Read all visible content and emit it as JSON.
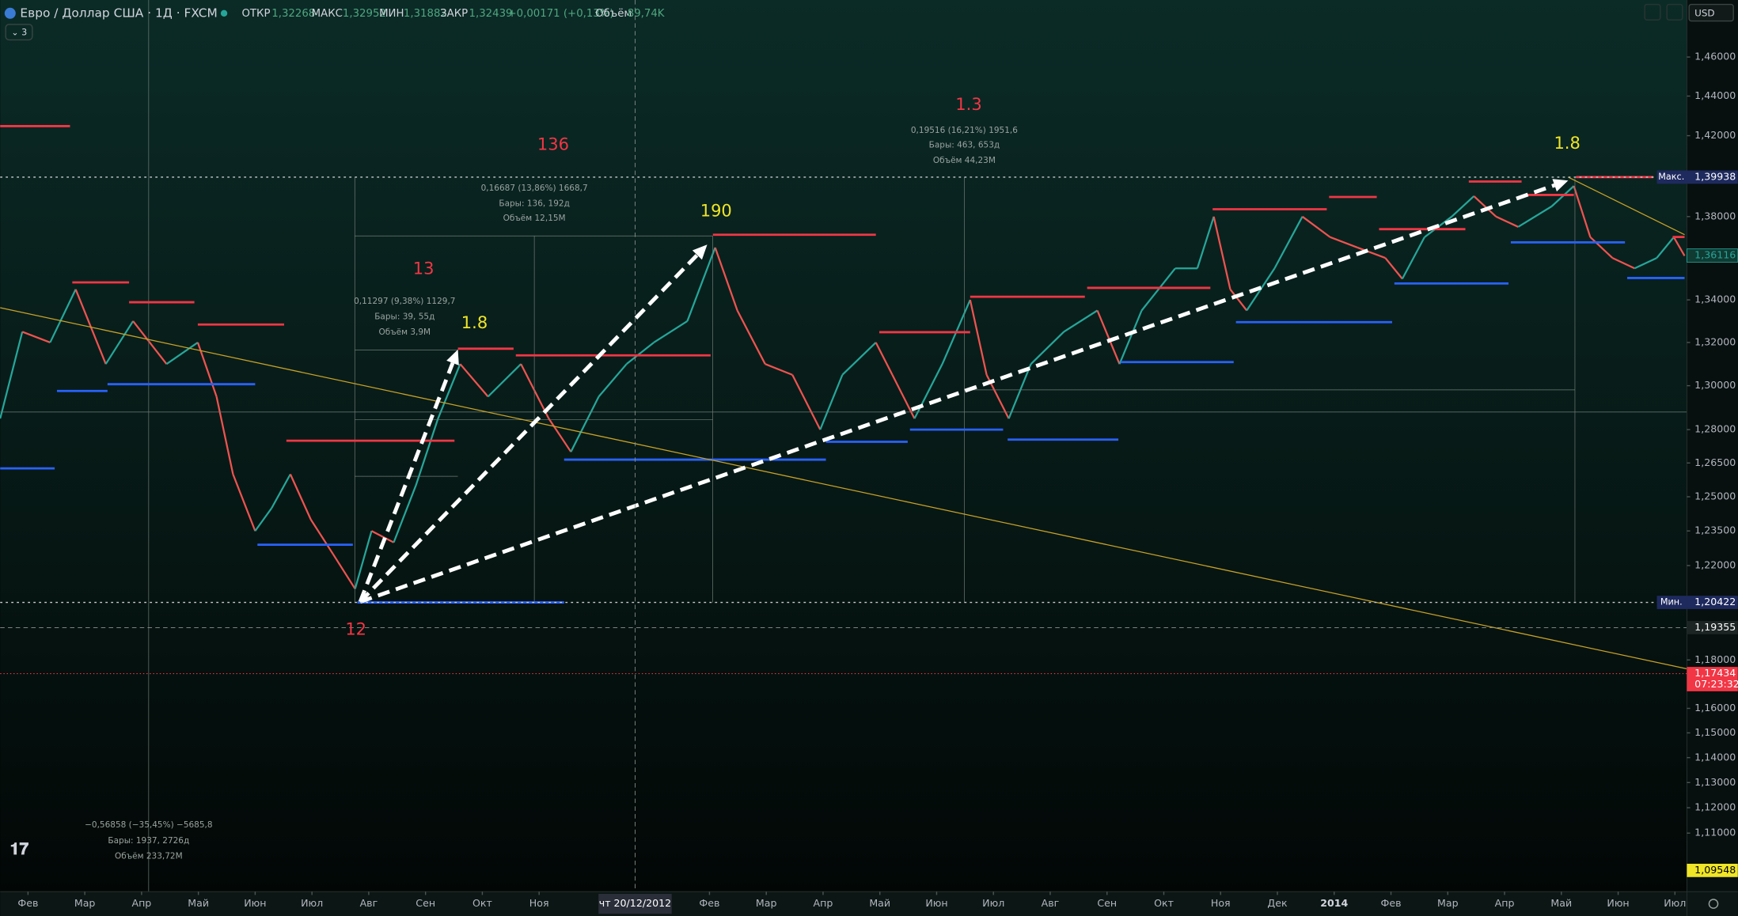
{
  "header": {
    "symbol": "Евро / Доллар США · 1Д · FXCM",
    "open_label": "ОТКР",
    "open": "1,32268",
    "high_label": "МАКС",
    "high": "1,32952",
    "low_label": "МИН",
    "low": "1,31882",
    "close_label": "ЗАКР",
    "close": "1,32439",
    "change": "+0,00171 (+0,13%)",
    "volume_label": "Объём",
    "volume": "89,74K",
    "indicators": "3",
    "currency": "USD"
  },
  "annotations": [
    {
      "text": "136",
      "color": "#f23645"
    },
    {
      "text": "1.3",
      "color": "#f23645"
    },
    {
      "text": "190",
      "color": "#f0e526"
    },
    {
      "text": "13",
      "color": "#f23645"
    },
    {
      "text": "1.8",
      "color": "#f0e526"
    },
    {
      "text": "1.8",
      "color": "#f0e526"
    },
    {
      "text": "12",
      "color": "#f23645"
    }
  ],
  "measures": [
    [
      "0,16687 (13,86%) 1668,7",
      "Бары: 136, 192д",
      "Объём 12,15M"
    ],
    [
      "0,19516 (16,21%) 1951,6",
      "Бары: 463, 653д",
      "Объём 44,23M"
    ],
    [
      "0,11297 (9,38%) 1129,7",
      "Бары: 39, 55д",
      "Объём 3,9M"
    ],
    [
      "−0,56858 (−35,45%) −5685,8",
      "Бары: 1937, 2726д",
      "Объём 233,72M"
    ]
  ],
  "crosshair": {
    "label": "чт 20/12/2012"
  },
  "chart_data": {
    "type": "line",
    "x": [
      -0.49,
      -0.1,
      0.39,
      0.84,
      1.37,
      1.85,
      2.44,
      2.99,
      3.32,
      3.61,
      4.0,
      4.29,
      4.62,
      4.98,
      5.37,
      5.76,
      6.05,
      6.44,
      6.83,
      7.22,
      7.61,
      8.1,
      8.68,
      9.17,
      9.56,
      10.05,
      10.54,
      11.02,
      11.61,
      12.1,
      12.49,
      12.98,
      13.46,
      13.95,
      14.34,
      14.93,
      15.22,
      15.61,
      16.1,
      16.59,
      16.88,
      17.27,
      17.66,
      18.24,
      18.83,
      19.22,
      19.61,
      20.2,
      20.59,
      20.88,
      21.17,
      21.46,
      21.95,
      22.44,
      22.93,
      23.41,
      23.9,
      24.2,
      24.59,
      25.07,
      25.46,
      25.85,
      26.24,
      26.83,
      27.22,
      27.51,
      27.9,
      28.29,
      28.68,
      28.98,
      29.17
    ],
    "values": [
      1.285,
      1.325,
      1.32,
      1.345,
      1.31,
      1.33,
      1.31,
      1.32,
      1.295,
      1.26,
      1.235,
      1.245,
      1.26,
      1.24,
      1.225,
      1.21,
      1.235,
      1.23,
      1.255,
      1.285,
      1.31,
      1.295,
      1.31,
      1.285,
      1.27,
      1.295,
      1.31,
      1.32,
      1.33,
      1.365,
      1.335,
      1.31,
      1.305,
      1.28,
      1.305,
      1.32,
      1.305,
      1.285,
      1.31,
      1.34,
      1.305,
      1.285,
      1.31,
      1.325,
      1.335,
      1.31,
      1.335,
      1.355,
      1.355,
      1.38,
      1.345,
      1.335,
      1.355,
      1.38,
      1.37,
      1.365,
      1.36,
      1.35,
      1.37,
      1.38,
      1.39,
      1.38,
      1.375,
      1.385,
      1.395,
      1.37,
      1.36,
      1.355,
      1.36,
      1.37,
      1.361
    ],
    "up_color": "#26a69a",
    "down_color": "#ef5350",
    "xlim": [
      -0.49,
      29.21
    ],
    "xticks": [
      {
        "value": 0,
        "label": "Фев"
      },
      {
        "value": 1,
        "label": "Мар"
      },
      {
        "value": 2,
        "label": "Апр"
      },
      {
        "value": 3,
        "label": "Май"
      },
      {
        "value": 4,
        "label": "Июн"
      },
      {
        "value": 5,
        "label": "Июл"
      },
      {
        "value": 6,
        "label": "Авг"
      },
      {
        "value": 7,
        "label": "Сен"
      },
      {
        "value": 8,
        "label": "Окт"
      },
      {
        "value": 9,
        "label": "Ноя"
      },
      {
        "value": 12,
        "label": "Фев"
      },
      {
        "value": 13,
        "label": "Мар"
      },
      {
        "value": 14,
        "label": "Апр"
      },
      {
        "value": 15,
        "label": "Май"
      },
      {
        "value": 16,
        "label": "Июн"
      },
      {
        "value": 17,
        "label": "Июл"
      },
      {
        "value": 18,
        "label": "Авг"
      },
      {
        "value": 19,
        "label": "Сен"
      },
      {
        "value": 20,
        "label": "Окт"
      },
      {
        "value": 21,
        "label": "Ноя"
      },
      {
        "value": 22,
        "label": "Дек"
      },
      {
        "value": 23,
        "label": "2014"
      },
      {
        "value": 24,
        "label": "Фев"
      },
      {
        "value": 25,
        "label": "Мар"
      },
      {
        "value": 26,
        "label": "Апр"
      },
      {
        "value": 27,
        "label": "Май"
      },
      {
        "value": 28,
        "label": "Июн"
      },
      {
        "value": 29,
        "label": "Июл"
      }
    ],
    "crosshair_x": 10.69,
    "ylim": [
      1.0873,
      1.4897
    ],
    "log": true,
    "yticks": [
      {
        "value": 1.46,
        "label": "1,46000"
      },
      {
        "value": 1.44,
        "label": "1,44000"
      },
      {
        "value": 1.42,
        "label": "1,42000"
      },
      {
        "value": 1.38,
        "label": "1,38000"
      },
      {
        "value": 1.34,
        "label": "1,34000"
      },
      {
        "value": 1.32,
        "label": "1,32000"
      },
      {
        "value": 1.3,
        "label": "1,30000"
      },
      {
        "value": 1.28,
        "label": "1,28000"
      },
      {
        "value": 1.265,
        "label": "1,26500"
      },
      {
        "value": 1.25,
        "label": "1,25000"
      },
      {
        "value": 1.235,
        "label": "1,23500"
      },
      {
        "value": 1.22,
        "label": "1,22000"
      },
      {
        "value": 1.18,
        "label": "1,18000"
      },
      {
        "value": 1.16,
        "label": "1,16000"
      },
      {
        "value": 1.15,
        "label": "1,15000"
      },
      {
        "value": 1.14,
        "label": "1,14000"
      },
      {
        "value": 1.13,
        "label": "1,13000"
      },
      {
        "value": 1.12,
        "label": "1,12000"
      },
      {
        "value": 1.11,
        "label": "1,11000"
      }
    ],
    "price_labels": [
      {
        "name": "Макс.",
        "value": 1.39938,
        "label": "1,39938",
        "color": "#1e2a5e"
      },
      {
        "value": 1.36116,
        "label": "1,36116",
        "color": "#0f3b33"
      },
      {
        "name": "Мин.",
        "value": 1.20422,
        "label": "1,20422",
        "color": "#1e2a5e"
      },
      {
        "value": 1.19355,
        "label": "1,19355",
        "color": "#1c2424"
      },
      {
        "value": 1.17434,
        "label": "1,17434",
        "timer": "07:23:32",
        "color": "#f23645"
      },
      {
        "value": 1.09548,
        "label": "1,09548",
        "color": "#f0e526"
      }
    ],
    "resistance": {
      "color": "#f23645",
      "levels": [
        {
          "x": [
            -0.49,
            0.74
          ],
          "value": 1.4248
        },
        {
          "x": [
            0.78,
            1.78
          ],
          "value": 1.3483
        },
        {
          "x": [
            1.78,
            2.93
          ],
          "value": 1.3389
        },
        {
          "x": [
            2.99,
            4.51
          ],
          "value": 1.3284
        },
        {
          "x": [
            4.55,
            7.51
          ],
          "value": 1.275
        },
        {
          "x": [
            7.57,
            8.55
          ],
          "value": 1.3171
        },
        {
          "x": [
            8.59,
            12.02
          ],
          "value": 1.314
        },
        {
          "x": [
            12.06,
            14.93
          ],
          "value": 1.3712
        },
        {
          "x": [
            14.99,
            16.59
          ],
          "value": 1.3248
        },
        {
          "x": [
            16.59,
            18.61
          ],
          "value": 1.3415
        },
        {
          "x": [
            18.65,
            20.82
          ],
          "value": 1.3457
        },
        {
          "x": [
            20.86,
            22.87
          ],
          "value": 1.3836
        },
        {
          "x": [
            22.91,
            23.75
          ],
          "value": 1.3896
        },
        {
          "x": [
            23.79,
            25.31
          ],
          "value": 1.3739
        },
        {
          "x": [
            25.37,
            26.3
          ],
          "value": 1.3972
        },
        {
          "x": [
            26.36,
            27.22
          ],
          "value": 1.3906
        },
        {
          "x": [
            27.26,
            28.62
          ],
          "value": 1.39938
        },
        {
          "x": [
            28.96,
            29.17
          ],
          "value": 1.3701
        }
      ]
    },
    "support": {
      "color": "#2962ff",
      "levels": [
        {
          "x": [
            -0.49,
            0.47
          ],
          "value": 1.2626
        },
        {
          "x": [
            0.51,
            1.4
          ],
          "value": 1.2976
        },
        {
          "x": [
            1.4,
            4.0
          ],
          "value": 1.3007
        },
        {
          "x": [
            4.04,
            5.72
          ],
          "value": 1.229
        },
        {
          "x": [
            5.8,
            9.44
          ],
          "value": 1.20422
        },
        {
          "x": [
            9.44,
            14.05
          ],
          "value": 1.2665
        },
        {
          "x": [
            14.05,
            15.49
          ],
          "value": 1.2745
        },
        {
          "x": [
            15.53,
            17.17
          ],
          "value": 1.28
        },
        {
          "x": [
            17.25,
            19.2
          ],
          "value": 1.2755
        },
        {
          "x": [
            19.24,
            21.23
          ],
          "value": 1.3109
        },
        {
          "x": [
            21.27,
            24.02
          ],
          "value": 1.3295
        },
        {
          "x": [
            24.06,
            26.07
          ],
          "value": 1.3478
        },
        {
          "x": [
            26.11,
            28.12
          ],
          "value": 1.3675
        },
        {
          "x": [
            28.16,
            29.17
          ],
          "value": 1.3504
        }
      ]
    },
    "arrows": {
      "color": "#ffffff",
      "items": [
        {
          "x": [
            5.85,
            7.57
          ],
          "values": [
            1.2045,
            1.3167
          ]
        },
        {
          "x": [
            5.85,
            11.96
          ],
          "values": [
            1.2045,
            1.3664
          ]
        },
        {
          "x": [
            5.85,
            27.12
          ],
          "values": [
            1.2045,
            1.3977
          ]
        }
      ]
    },
    "trendlines": {
      "color": "#c9a227",
      "items": [
        {
          "x": [
            -0.49,
            29.21
          ],
          "values": [
            1.3363,
            1.1763
          ]
        },
        {
          "x": [
            27.12,
            29.17
          ],
          "values": [
            1.39938,
            1.3712
          ]
        }
      ]
    }
  }
}
